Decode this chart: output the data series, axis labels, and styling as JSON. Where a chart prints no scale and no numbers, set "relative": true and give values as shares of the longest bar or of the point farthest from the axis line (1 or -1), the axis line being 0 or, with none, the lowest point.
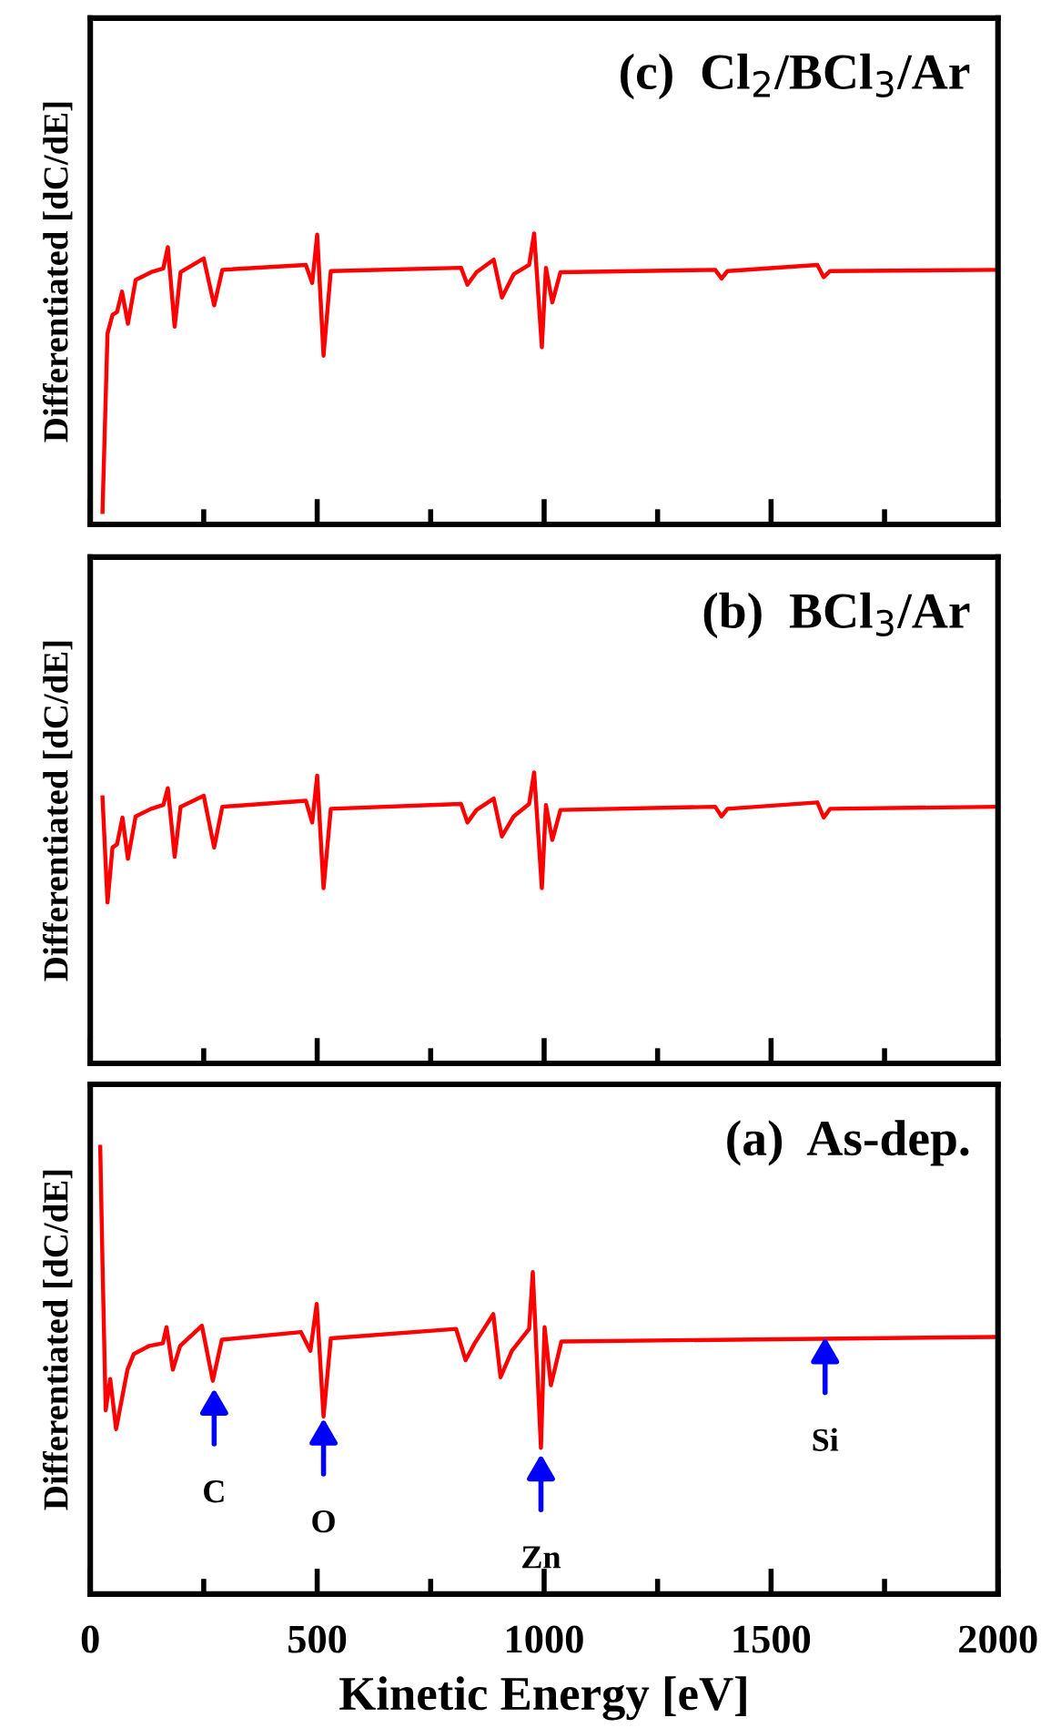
{
  "chart_data": [
    {
      "type": "line",
      "title": "(c)  Cl$_{2}$/BCl$_{3}$/Ar",
      "ylabel": "Differentiated [dC/dE]",
      "relative": true,
      "tick_labels": false,
      "xlim": [
        0,
        2000
      ],
      "xticks": [
        0,
        {
          "value": 250,
          "label": null
        },
        500,
        {
          "value": 750,
          "label": null
        },
        1000,
        {
          "value": 1250,
          "label": null
        },
        1500,
        {
          "value": 1750,
          "label": null
        },
        2000
      ],
      "grid": false,
      "legend": false,
      "x": [
        27,
        38,
        49,
        59,
        70,
        83,
        100,
        134,
        161,
        171,
        186,
        199,
        250,
        273,
        291,
        475,
        489,
        500,
        514,
        530,
        817,
        831,
        851,
        889,
        907,
        933,
        967,
        978,
        995,
        1004,
        1018,
        1036,
        1377,
        1391,
        1404,
        1602,
        1616,
        1630,
        1996
      ],
      "series": [
        {
          "color": "#ff0000",
          "values": [
            0.043,
            0.656,
            0.72,
            0.73,
            0.8,
            0.69,
            0.84,
            0.867,
            0.88,
            0.953,
            0.68,
            0.867,
            0.914,
            0.753,
            0.875,
            0.892,
            0.83,
            0.996,
            0.58,
            0.871,
            0.882,
            0.824,
            0.867,
            0.91,
            0.78,
            0.86,
            0.892,
            1.0,
            0.609,
            0.882,
            0.763,
            0.867,
            0.875,
            0.845,
            0.871,
            0.892,
            0.85,
            0.871,
            0.875
          ]
        }
      ]
    },
    {
      "type": "line",
      "title": "(b)  BCl$_{3}$/Ar",
      "ylabel": "Differentiated [dC/dE]",
      "relative": true,
      "tick_labels": false,
      "xlim": [
        0,
        2000
      ],
      "xticks": [
        0,
        {
          "value": 250,
          "label": null
        },
        500,
        {
          "value": 750,
          "label": null
        },
        1000,
        {
          "value": 1250,
          "label": null
        },
        1500,
        {
          "value": 1750,
          "label": null
        },
        2000
      ],
      "grid": false,
      "legend": false,
      "x": [
        27,
        38,
        49,
        59,
        71,
        83,
        100,
        134,
        161,
        171,
        186,
        199,
        250,
        273,
        291,
        475,
        489,
        500,
        514,
        530,
        817,
        831,
        851,
        889,
        907,
        933,
        967,
        978,
        995,
        1004,
        1018,
        1036,
        1377,
        1391,
        1404,
        1602,
        1616,
        1630,
        1996
      ],
      "series": [
        {
          "color": "#ff0000",
          "values": [
            0.914,
            0.553,
            0.742,
            0.753,
            0.845,
            0.703,
            0.849,
            0.875,
            0.888,
            0.946,
            0.71,
            0.882,
            0.92,
            0.742,
            0.882,
            0.903,
            0.828,
            0.989,
            0.602,
            0.875,
            0.892,
            0.828,
            0.871,
            0.91,
            0.78,
            0.849,
            0.892,
            1.0,
            0.602,
            0.888,
            0.768,
            0.871,
            0.882,
            0.849,
            0.875,
            0.897,
            0.845,
            0.875,
            0.882
          ]
        }
      ]
    },
    {
      "type": "line",
      "title": "(a)  As-dep.",
      "ylabel": "Differentiated [dC/dE]",
      "xlabel": "Kinetic Energy [eV]",
      "relative": true,
      "tick_labels": "x",
      "xlim": [
        0,
        2000
      ],
      "xticks": [
        0,
        {
          "value": 250,
          "label": null
        },
        500,
        {
          "value": 750,
          "label": null
        },
        1000,
        {
          "value": 1250,
          "label": null
        },
        1500,
        {
          "value": 1750,
          "label": null
        },
        2000
      ],
      "grid": false,
      "legend": false,
      "x": [
        22,
        27,
        34,
        44,
        57,
        82,
        96,
        130,
        160,
        168,
        182,
        198,
        246,
        270,
        290,
        464,
        485,
        499,
        514,
        530,
        806,
        827,
        847,
        888,
        904,
        929,
        967,
        975,
        993,
        1001,
        1015,
        1038,
        1995
      ],
      "series": [
        {
          "color": "#ff0000",
          "values": [
            1.0,
            0.74,
            0.411,
            0.481,
            0.369,
            0.502,
            0.537,
            0.555,
            0.561,
            0.597,
            0.502,
            0.555,
            0.6,
            0.477,
            0.569,
            0.586,
            0.544,
            0.649,
            0.397,
            0.572,
            0.593,
            0.523,
            0.561,
            0.626,
            0.485,
            0.544,
            0.593,
            0.72,
            0.327,
            0.597,
            0.467,
            0.565,
            0.575
          ]
        }
      ],
      "annotations": [
        {
          "text": "C",
          "x": 273,
          "y": 0.46
        },
        {
          "text": "O",
          "x": 514,
          "y": 0.393
        },
        {
          "text": "Zn",
          "x": 993,
          "y": 0.313
        },
        {
          "text": "Si",
          "x": 1619,
          "y": 0.575
        }
      ]
    }
  ]
}
